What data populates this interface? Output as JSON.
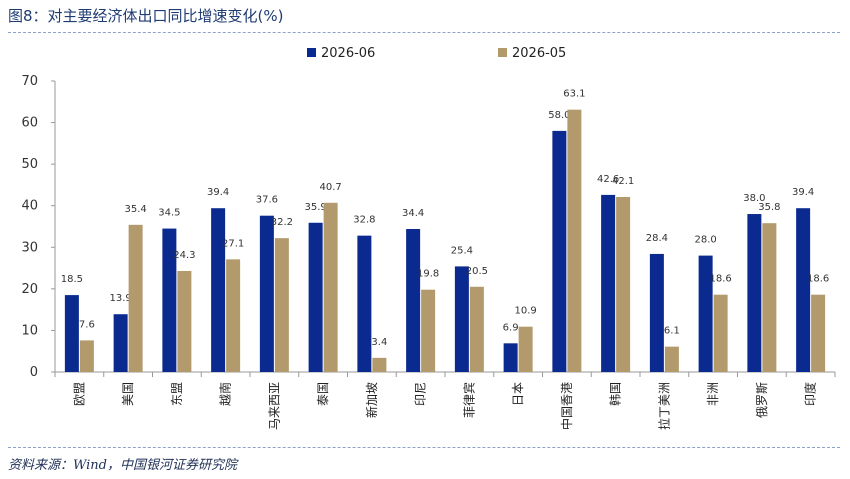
{
  "figure": {
    "title": "图8：对主要经济体出口同比增速变化(%)",
    "source": "资料来源：Wind，中国银河证券研究院"
  },
  "colors": {
    "series_1": "#0b2a8f",
    "series_2": "#b39a6c",
    "axis": "#999999"
  },
  "chart_data": {
    "type": "bar",
    "title": "对主要经济体出口同比增速变化(%)",
    "xlabel": "",
    "ylabel": "",
    "ylim": [
      0,
      70
    ],
    "yticks": [
      0,
      10,
      20,
      30,
      40,
      50,
      60,
      70
    ],
    "grid": false,
    "legend": "top-center",
    "categories": [
      "欧盟",
      "美国",
      "东盟",
      "越南",
      "马来西亚",
      "泰国",
      "新加坡",
      "印尼",
      "菲律宾",
      "日本",
      "中国香港",
      "韩国",
      "拉丁美洲",
      "非洲",
      "俄罗斯",
      "印度"
    ],
    "series": [
      {
        "name": "2026-06",
        "values": [
          18.5,
          13.9,
          34.5,
          39.4,
          37.6,
          35.9,
          32.8,
          34.4,
          25.4,
          6.9,
          58.0,
          42.6,
          28.4,
          28.0,
          38.0,
          39.4
        ]
      },
      {
        "name": "2026-05",
        "values": [
          7.6,
          35.4,
          24.3,
          27.1,
          32.2,
          40.7,
          3.4,
          19.8,
          20.5,
          10.9,
          63.1,
          42.1,
          6.1,
          18.6,
          35.8,
          18.6
        ]
      }
    ]
  }
}
